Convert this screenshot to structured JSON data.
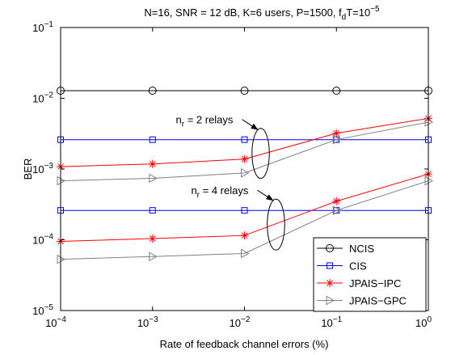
{
  "chart_data": {
    "type": "line",
    "title": {
      "prefix": "N=16, SNR = 12 dB, K=6 users, P=1500, f",
      "sub": "d",
      "mid": "T=10",
      "sup": "−5"
    },
    "xlabel": "Rate of feedback channel errors (%)",
    "ylabel": "BER",
    "xscale": "log",
    "yscale": "log",
    "xlim": [
      0.0001,
      1
    ],
    "ylim": [
      1e-05,
      0.1
    ],
    "grid": false,
    "x_ticks": [
      {
        "value": 0.0001,
        "base": "10",
        "exp": "−4"
      },
      {
        "value": 0.001,
        "base": "10",
        "exp": "−3"
      },
      {
        "value": 0.01,
        "base": "10",
        "exp": "−2"
      },
      {
        "value": 0.1,
        "base": "10",
        "exp": "−1"
      },
      {
        "value": 1,
        "base": "10",
        "exp": "0"
      }
    ],
    "y_ticks": [
      {
        "value": 1e-05,
        "base": "10",
        "exp": "−5"
      },
      {
        "value": 0.0001,
        "base": "10",
        "exp": "−4"
      },
      {
        "value": 0.001,
        "base": "10",
        "exp": "−3"
      },
      {
        "value": 0.01,
        "base": "10",
        "exp": "−2"
      },
      {
        "value": 0.1,
        "base": "10",
        "exp": "−1"
      }
    ],
    "x": [
      0.0001,
      0.001,
      0.01,
      0.1,
      1
    ],
    "series": [
      {
        "name": "NCIS",
        "color": "#000000",
        "marker": "circle",
        "values": [
          0.0128,
          0.0128,
          0.0128,
          0.0128,
          0.0128
        ]
      },
      {
        "name": "CIS",
        "color": "#0000ff",
        "marker": "square",
        "group": "nr2",
        "values": [
          0.0026,
          0.0026,
          0.0026,
          0.0026,
          0.0026
        ]
      },
      {
        "name": "JPAIS−IPC",
        "color": "#ff0000",
        "marker": "star",
        "group": "nr2",
        "values": [
          0.00108,
          0.00118,
          0.00138,
          0.0032,
          0.0052
        ]
      },
      {
        "name": "JPAIS−GPC",
        "color": "#808080",
        "marker": "triangle-right",
        "group": "nr2",
        "values": [
          0.00068,
          0.00074,
          0.00088,
          0.0026,
          0.0046
        ]
      },
      {
        "name": "CIS",
        "color": "#0000ff",
        "marker": "square",
        "group": "nr4",
        "values": [
          0.00026,
          0.00026,
          0.00026,
          0.00026,
          0.00026
        ]
      },
      {
        "name": "JPAIS−IPC",
        "color": "#ff0000",
        "marker": "star",
        "group": "nr4",
        "values": [
          9.5e-05,
          0.000104,
          0.000115,
          0.00035,
          0.00085
        ]
      },
      {
        "name": "JPAIS−GPC",
        "color": "#808080",
        "marker": "triangle-right",
        "group": "nr4",
        "values": [
          5.3e-05,
          5.8e-05,
          6.4e-05,
          0.00026,
          0.00068
        ]
      }
    ],
    "legend": {
      "placement": "bottom-right",
      "entries": [
        {
          "label": "NCIS",
          "color": "#000000",
          "marker": "circle"
        },
        {
          "label": "CIS",
          "color": "#0000ff",
          "marker": "square"
        },
        {
          "label": "JPAIS−IPC",
          "color": "#ff0000",
          "marker": "star"
        },
        {
          "label": "JPAIS−GPC",
          "color": "#808080",
          "marker": "triangle-right"
        }
      ]
    },
    "annotations": [
      {
        "name": "nr2",
        "n": "n",
        "sub": "r",
        "rest": " = 2 relays",
        "x": 0.015,
        "y": 0.0012
      },
      {
        "name": "nr4",
        "n": "n",
        "sub": "r",
        "rest": " = 4 relays",
        "x": 0.022,
        "y": 0.00015
      }
    ]
  }
}
